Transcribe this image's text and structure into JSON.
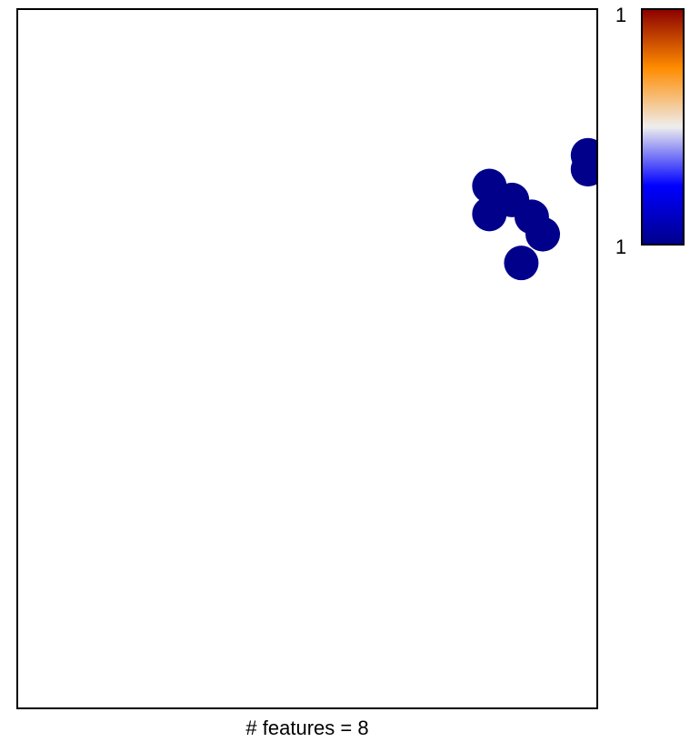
{
  "chart_data": {
    "type": "scatter",
    "xlabel": "# features = 8",
    "point_color": "#00008B",
    "points": [
      {
        "x": 0.984,
        "y": 0.791
      },
      {
        "x": 0.984,
        "y": 0.771
      },
      {
        "x": 0.814,
        "y": 0.747
      },
      {
        "x": 0.853,
        "y": 0.727
      },
      {
        "x": 0.814,
        "y": 0.707
      },
      {
        "x": 0.887,
        "y": 0.703
      },
      {
        "x": 0.906,
        "y": 0.678
      },
      {
        "x": 0.869,
        "y": 0.637
      }
    ],
    "colorbar": {
      "top_label": "1",
      "bottom_label": "1",
      "colors": [
        "#8B0000",
        "#FF8C00",
        "#EEEEEE",
        "#0000FF",
        "#00008B"
      ]
    }
  }
}
